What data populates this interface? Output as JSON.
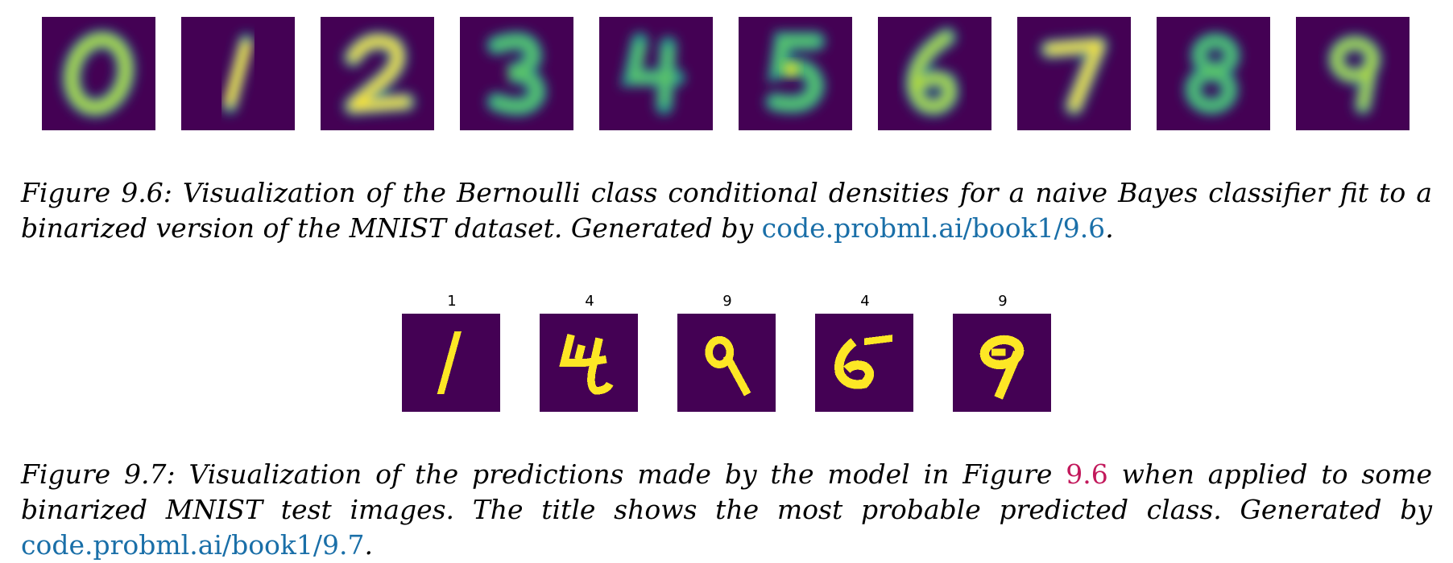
{
  "figure_9_6": {
    "digits": [
      "0",
      "1",
      "2",
      "3",
      "4",
      "5",
      "6",
      "7",
      "8",
      "9"
    ],
    "colors": {
      "background": "#440154",
      "mid": "#21918c",
      "high": "#fde725"
    },
    "caption_text": "Figure 9.6: Visualization of the Bernoulli class conditional densities for a naive Bayes classifier fit to a binarized version of the MNIST dataset. Generated by ",
    "caption_link": "code.probml.ai/book1/9.6",
    "caption_end": "."
  },
  "figure_9_7": {
    "predictions": [
      "1",
      "4",
      "9",
      "4",
      "9"
    ],
    "colors": {
      "background": "#440154",
      "foreground": "#fde725"
    },
    "caption_text_a": "Figure 9.7: Visualization of the predictions made by the model in Figure ",
    "caption_ref": "9.6",
    "caption_text_b": " when applied to some binarized MNIST test images. The title shows the most probable predicted class. Generated by ",
    "caption_link": "code.probml.ai/book1/9.7",
    "caption_end": "."
  }
}
